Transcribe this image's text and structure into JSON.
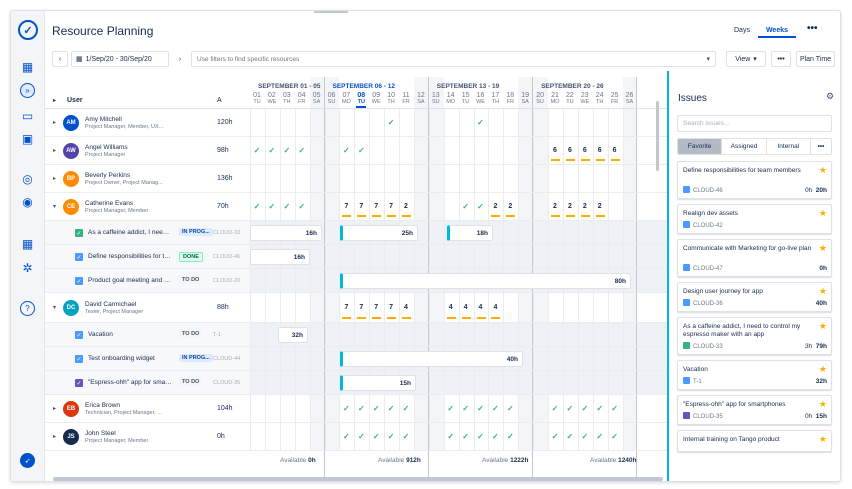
{
  "app": {
    "title": "Resource Planning"
  },
  "views": {
    "days": "Days",
    "weeks": "Weeks",
    "more": "•••"
  },
  "toolbar": {
    "date_range": "1/Sep/20 - 30/Sep/20",
    "filter_placeholder": "Use filters to find specific resources",
    "view_label": "View",
    "more": "•••",
    "plan_time": "Plan Time"
  },
  "grid_header": {
    "user": "User",
    "a": "A"
  },
  "weeks": [
    {
      "label": "SEPTEMBER 01 - 05",
      "current": false
    },
    {
      "label": "SEPTEMBER 06 - 12",
      "current": true
    },
    {
      "label": "SEPTEMBER 13 - 19",
      "current": false
    },
    {
      "label": "SEPTEMBER 20 - 26",
      "current": false
    }
  ],
  "days": [
    {
      "n": "01",
      "d": "TU"
    },
    {
      "n": "02",
      "d": "WE"
    },
    {
      "n": "03",
      "d": "TH"
    },
    {
      "n": "04",
      "d": "FR"
    },
    {
      "n": "05",
      "d": "SA"
    },
    {
      "n": "06",
      "d": "SU"
    },
    {
      "n": "07",
      "d": "MO"
    },
    {
      "n": "08",
      "d": "TU"
    },
    {
      "n": "09",
      "d": "WE"
    },
    {
      "n": "10",
      "d": "TH"
    },
    {
      "n": "11",
      "d": "FR"
    },
    {
      "n": "12",
      "d": "SA"
    },
    {
      "n": "13",
      "d": "SU"
    },
    {
      "n": "14",
      "d": "MO"
    },
    {
      "n": "15",
      "d": "TU"
    },
    {
      "n": "16",
      "d": "WE"
    },
    {
      "n": "17",
      "d": "TH"
    },
    {
      "n": "18",
      "d": "FR"
    },
    {
      "n": "19",
      "d": "SA"
    },
    {
      "n": "20",
      "d": "SU"
    },
    {
      "n": "21",
      "d": "MO"
    },
    {
      "n": "22",
      "d": "TU"
    },
    {
      "n": "23",
      "d": "WE"
    },
    {
      "n": "24",
      "d": "TH"
    },
    {
      "n": "25",
      "d": "FR"
    },
    {
      "n": "26",
      "d": "SA"
    }
  ],
  "users": [
    {
      "initials": "AM",
      "color": "#0052cc",
      "name": "Amy Mitchell",
      "role": "Project Manager, Member, UX...",
      "hours": "120h"
    },
    {
      "initials": "AW",
      "color": "#5243aa",
      "name": "Angel Williams",
      "role": "Project Manager",
      "hours": "98h"
    },
    {
      "initials": "BP",
      "color": "#ff8b00",
      "name": "Beverly Perkins",
      "role": "Project Owner, Project Manag...",
      "hours": "136h"
    },
    {
      "initials": "CE",
      "color": "#ff8b00",
      "name": "Catherine Evans",
      "role": "Project Manager, Member",
      "hours": "70h"
    },
    {
      "initials": "DC",
      "color": "#00a3bf",
      "name": "David Carmichael",
      "role": "Tester, Project Manager",
      "hours": "88h"
    },
    {
      "initials": "EB",
      "color": "#de350b",
      "name": "Erica Brown",
      "role": "Technician, Project Manager, ...",
      "hours": "104h"
    },
    {
      "initials": "JS",
      "color": "#172b4d",
      "name": "John Steel",
      "role": "Project Manager, Member",
      "hours": "0h"
    }
  ],
  "tasks_ce": [
    {
      "summary": "As a caffeine addict, I need to...",
      "status": "IN PROG...",
      "key": "CLOUD-33",
      "bar": "16h",
      "bar2": "25h",
      "bar3": "18h"
    },
    {
      "summary": "Define responsibilities for te...",
      "status": "DONE",
      "key": "CLOUD-46",
      "bar": "16h"
    },
    {
      "summary": "Product goal meeting and di...",
      "status": "TO DO",
      "key": "CLOUD-20",
      "bar": "80h"
    }
  ],
  "tasks_dc": [
    {
      "summary": "Vacation",
      "status": "TO DO",
      "key": "T-1",
      "bar": "32h"
    },
    {
      "summary": "Test onboarding widget",
      "status": "IN PROG...",
      "key": "CLOUD-44",
      "bar": "40h"
    },
    {
      "summary": "\"Espress-ohh\" app for smart...",
      "status": "TO DO",
      "key": "CLOUD-35",
      "bar": "15h"
    }
  ],
  "row_counts": {
    "ce": [
      "7",
      "7",
      "7",
      "7",
      "2",
      "2",
      "2",
      "2",
      "2",
      "2",
      "2"
    ],
    "dc": [
      "7",
      "7",
      "7",
      "7",
      "4",
      "4",
      "4",
      "4",
      "4"
    ],
    "aw": [
      "6",
      "6",
      "6",
      "6",
      "6"
    ]
  },
  "available": [
    {
      "label": "Available",
      "value": "0h"
    },
    {
      "label": "Available",
      "value": "912h"
    },
    {
      "label": "Available",
      "value": "1222h"
    },
    {
      "label": "Available",
      "value": "1240h"
    }
  ],
  "panel": {
    "title": "Issues",
    "search_placeholder": "Search issues...",
    "tabs": [
      "Favorite",
      "Assigned",
      "Internal",
      "•••"
    ],
    "cards": [
      {
        "summary": "Define responsibilities for team members",
        "key": "CLOUD-46",
        "est_left": "0h",
        "est": "20h",
        "type": "#4c9aff"
      },
      {
        "summary": "Realign dev assets",
        "key": "CLOUD-42",
        "est_left": "",
        "est": "",
        "type": "#4c9aff"
      },
      {
        "summary": "Communicate with Marketing for go-live plan",
        "key": "CLOUD-47",
        "est_left": "",
        "est": "0h",
        "type": "#4c9aff"
      },
      {
        "summary": "Design user journey for app",
        "key": "CLOUD-36",
        "est_left": "",
        "est": "40h",
        "type": "#4c9aff"
      },
      {
        "summary": "As a caffeine addict, I need to control my espresso maker with an app",
        "key": "CLOUD-33",
        "est_left": "3h",
        "est": "79h",
        "type": "#36b37e"
      },
      {
        "summary": "Vacation",
        "key": "T-1",
        "est_left": "",
        "est": "32h",
        "type": "#4c9aff"
      },
      {
        "summary": "\"Espress-ohh\" app for smartphones",
        "key": "CLOUD-35",
        "est_left": "0h",
        "est": "15h",
        "type": "#6554c0"
      },
      {
        "summary": "Internal training on Tango product",
        "key": "",
        "est_left": "",
        "est": "",
        "type": "#4c9aff"
      }
    ]
  }
}
